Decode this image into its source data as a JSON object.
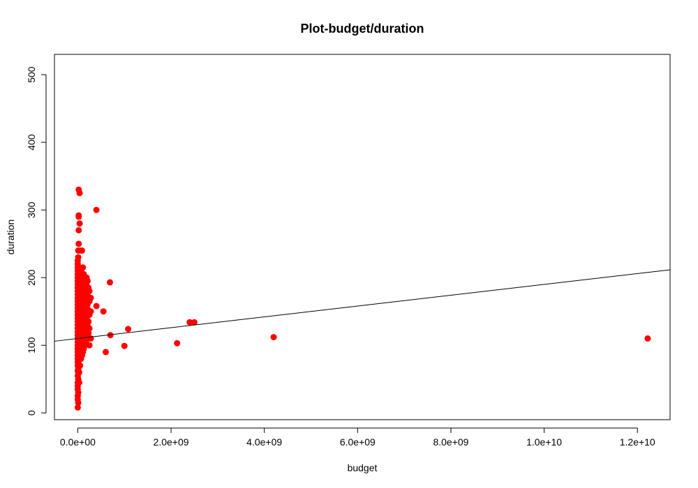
{
  "chart_data": {
    "type": "scatter",
    "title": "Plot-budget/duration",
    "xlabel": "budget",
    "ylabel": "duration",
    "xlim": [
      -500000000.0,
      12700000000.0
    ],
    "ylim": [
      -10,
      530
    ],
    "xticks": [
      0,
      2000000000.0,
      4000000000.0,
      6000000000.0,
      8000000000.0,
      10000000000.0,
      12000000000.0
    ],
    "xtick_labels": [
      "0.0e+00",
      "2.0e+09",
      "4.0e+09",
      "6.0e+09",
      "8.0e+09",
      "1.0e+10",
      "1.2e+10"
    ],
    "yticks": [
      0,
      100,
      200,
      300,
      400,
      500
    ],
    "ytick_labels": [
      "0",
      "100",
      "200",
      "300",
      "400",
      "500"
    ],
    "grid": false,
    "point_color": "#ff0000",
    "line_color": "#000000",
    "regression_line": {
      "intercept": 110,
      "slope": 8e-09
    },
    "series": [
      {
        "points": [
          [
            0,
            8
          ],
          [
            0,
            20
          ],
          [
            0,
            25
          ],
          [
            0,
            35
          ],
          [
            0,
            40
          ],
          [
            0,
            45
          ],
          [
            0,
            55
          ],
          [
            0,
            62
          ],
          [
            0,
            70
          ],
          [
            0,
            75
          ],
          [
            0,
            80
          ],
          [
            0,
            85
          ],
          [
            0,
            90
          ],
          [
            0,
            95
          ],
          [
            0,
            100
          ],
          [
            0,
            105
          ],
          [
            0,
            110
          ],
          [
            0,
            115
          ],
          [
            0,
            120
          ],
          [
            0,
            125
          ],
          [
            0,
            130
          ],
          [
            0,
            135
          ],
          [
            0,
            140
          ],
          [
            0,
            145
          ],
          [
            0,
            150
          ],
          [
            0,
            155
          ],
          [
            0,
            160
          ],
          [
            0,
            165
          ],
          [
            0,
            170
          ],
          [
            0,
            175
          ],
          [
            0,
            180
          ],
          [
            0,
            185
          ],
          [
            0,
            190
          ],
          [
            0,
            195
          ],
          [
            0,
            200
          ],
          [
            0,
            205
          ],
          [
            0,
            210
          ],
          [
            0,
            215
          ],
          [
            0,
            220
          ],
          [
            0,
            225
          ],
          [
            10000000.0,
            15
          ],
          [
            10000000.0,
            30
          ],
          [
            10000000.0,
            50
          ],
          [
            10000000.0,
            65
          ],
          [
            10000000.0,
            88
          ],
          [
            10000000.0,
            98
          ],
          [
            10000000.0,
            108
          ],
          [
            10000000.0,
            118
          ],
          [
            10000000.0,
            128
          ],
          [
            10000000.0,
            138
          ],
          [
            10000000.0,
            148
          ],
          [
            10000000.0,
            158
          ],
          [
            10000000.0,
            168
          ],
          [
            10000000.0,
            178
          ],
          [
            10000000.0,
            188
          ],
          [
            10000000.0,
            198
          ],
          [
            10000000.0,
            230
          ],
          [
            10000000.0,
            240
          ],
          [
            20000000.0,
            270
          ],
          [
            20000000.0,
            290
          ],
          [
            20000000.0,
            292
          ],
          [
            20000000.0,
            330
          ],
          [
            20000000.0,
            250
          ],
          [
            30000000.0,
            45
          ],
          [
            30000000.0,
            60
          ],
          [
            30000000.0,
            78
          ],
          [
            30000000.0,
            92
          ],
          [
            30000000.0,
            102
          ],
          [
            30000000.0,
            112
          ],
          [
            30000000.0,
            122
          ],
          [
            30000000.0,
            132
          ],
          [
            30000000.0,
            142
          ],
          [
            30000000.0,
            152
          ],
          [
            30000000.0,
            162
          ],
          [
            30000000.0,
            172
          ],
          [
            30000000.0,
            182
          ],
          [
            30000000.0,
            192
          ],
          [
            30000000.0,
            202
          ],
          [
            30000000.0,
            212
          ],
          [
            40000000.0,
            325
          ],
          [
            40000000.0,
            280
          ],
          [
            40000000.0,
            240
          ],
          [
            50000000.0,
            70
          ],
          [
            50000000.0,
            85
          ],
          [
            50000000.0,
            96
          ],
          [
            50000000.0,
            106
          ],
          [
            50000000.0,
            116
          ],
          [
            50000000.0,
            126
          ],
          [
            50000000.0,
            136
          ],
          [
            50000000.0,
            146
          ],
          [
            50000000.0,
            156
          ],
          [
            50000000.0,
            166
          ],
          [
            50000000.0,
            176
          ],
          [
            50000000.0,
            186
          ],
          [
            50000000.0,
            196
          ],
          [
            50000000.0,
            206
          ],
          [
            70000000.0,
            80
          ],
          [
            70000000.0,
            95
          ],
          [
            70000000.0,
            105
          ],
          [
            70000000.0,
            115
          ],
          [
            70000000.0,
            125
          ],
          [
            70000000.0,
            135
          ],
          [
            70000000.0,
            145
          ],
          [
            70000000.0,
            155
          ],
          [
            70000000.0,
            165
          ],
          [
            70000000.0,
            175
          ],
          [
            70000000.0,
            185
          ],
          [
            70000000.0,
            195
          ],
          [
            70000000.0,
            210
          ],
          [
            90000000.0,
            85
          ],
          [
            90000000.0,
            100
          ],
          [
            90000000.0,
            112
          ],
          [
            90000000.0,
            124
          ],
          [
            90000000.0,
            136
          ],
          [
            90000000.0,
            148
          ],
          [
            90000000.0,
            160
          ],
          [
            90000000.0,
            172
          ],
          [
            90000000.0,
            184
          ],
          [
            90000000.0,
            196
          ],
          [
            90000000.0,
            240
          ],
          [
            110000000.0,
            90
          ],
          [
            110000000.0,
            105
          ],
          [
            110000000.0,
            118
          ],
          [
            110000000.0,
            130
          ],
          [
            110000000.0,
            142
          ],
          [
            110000000.0,
            154
          ],
          [
            110000000.0,
            166
          ],
          [
            110000000.0,
            178
          ],
          [
            110000000.0,
            190
          ],
          [
            110000000.0,
            215
          ],
          [
            130000000.0,
            95
          ],
          [
            130000000.0,
            110
          ],
          [
            130000000.0,
            122
          ],
          [
            130000000.0,
            134
          ],
          [
            130000000.0,
            146
          ],
          [
            130000000.0,
            158
          ],
          [
            130000000.0,
            170
          ],
          [
            130000000.0,
            182
          ],
          [
            130000000.0,
            194
          ],
          [
            130000000.0,
            205
          ],
          [
            150000000.0,
            100
          ],
          [
            150000000.0,
            114
          ],
          [
            150000000.0,
            126
          ],
          [
            150000000.0,
            138
          ],
          [
            150000000.0,
            150
          ],
          [
            150000000.0,
            162
          ],
          [
            150000000.0,
            174
          ],
          [
            150000000.0,
            186
          ],
          [
            150000000.0,
            198
          ],
          [
            170000000.0,
            105
          ],
          [
            170000000.0,
            120
          ],
          [
            170000000.0,
            134
          ],
          [
            170000000.0,
            148
          ],
          [
            170000000.0,
            162
          ],
          [
            170000000.0,
            176
          ],
          [
            170000000.0,
            190
          ],
          [
            190000000.0,
            108
          ],
          [
            190000000.0,
            124
          ],
          [
            190000000.0,
            140
          ],
          [
            190000000.0,
            156
          ],
          [
            190000000.0,
            172
          ],
          [
            190000000.0,
            188
          ],
          [
            190000000.0,
            200
          ],
          [
            210000000.0,
            112
          ],
          [
            210000000.0,
            128
          ],
          [
            210000000.0,
            144
          ],
          [
            210000000.0,
            160
          ],
          [
            210000000.0,
            176
          ],
          [
            210000000.0,
            195
          ],
          [
            230000000.0,
            118
          ],
          [
            230000000.0,
            135
          ],
          [
            230000000.0,
            152
          ],
          [
            230000000.0,
            168
          ],
          [
            230000000.0,
            185
          ],
          [
            250000000.0,
            100
          ],
          [
            250000000.0,
            125
          ],
          [
            250000000.0,
            145
          ],
          [
            250000000.0,
            165
          ],
          [
            250000000.0,
            180
          ],
          [
            280000000.0,
            110
          ],
          [
            280000000.0,
            150
          ],
          [
            280000000.0,
            170
          ],
          [
            400000000.0,
            300
          ],
          [
            400000000.0,
            158
          ],
          [
            550000000.0,
            150
          ],
          [
            600000000.0,
            90
          ],
          [
            690000000.0,
            193
          ],
          [
            700000000.0,
            115
          ],
          [
            1000000000.0,
            99
          ],
          [
            1080000000.0,
            124
          ],
          [
            2130000000.0,
            103
          ],
          [
            2400000000.0,
            134
          ],
          [
            2500000000.0,
            134
          ],
          [
            4200000000.0,
            112
          ],
          [
            12220000000.0,
            110
          ]
        ]
      }
    ]
  }
}
